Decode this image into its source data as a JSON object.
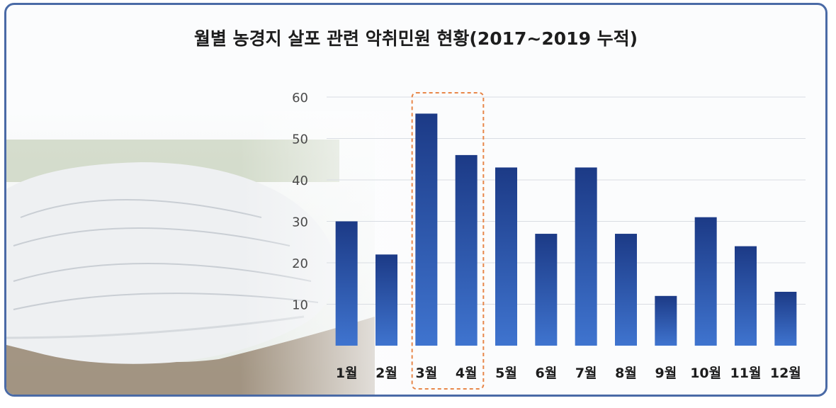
{
  "chart_data": {
    "type": "bar",
    "title": "월별 농경지 살포 관련 악취민원 현황(2017~2019 누적)",
    "categories": [
      "1월",
      "2월",
      "3월",
      "4월",
      "5월",
      "6월",
      "7월",
      "8월",
      "9월",
      "10월",
      "11월",
      "12월"
    ],
    "values": [
      30,
      22,
      56,
      46,
      43,
      27,
      43,
      27,
      12,
      31,
      24,
      13
    ],
    "ylim": [
      0,
      60
    ],
    "yticks": [
      "10",
      "20",
      "30",
      "40",
      "50",
      "60"
    ],
    "grid": true,
    "highlight": {
      "categories": [
        "3월",
        "4월"
      ],
      "style": "dashed-box",
      "color": "#e8874a"
    },
    "colors": {
      "bar_top": "#1c3a86",
      "bar_bottom": "#3f74cf",
      "frame": "#4a6aa6"
    },
    "background_image": "greenhouse-farmland-photo"
  }
}
